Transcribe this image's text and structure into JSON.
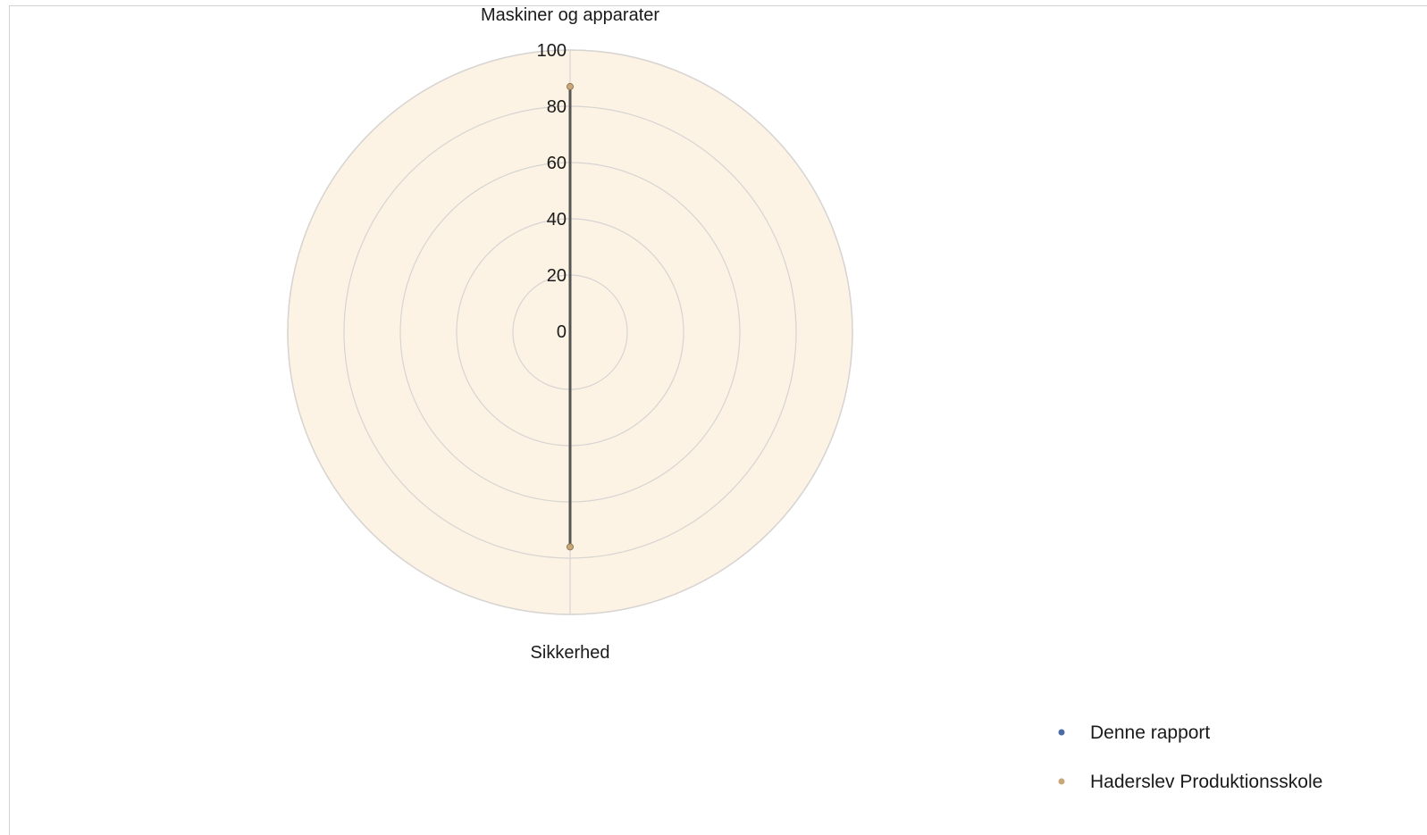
{
  "chart_data": {
    "type": "radar",
    "categories": [
      "Maskiner og apparater",
      "Sikkerhed"
    ],
    "series": [
      {
        "name": "Denne rapport",
        "values": [
          87,
          76
        ],
        "color": "#4a6aa8"
      },
      {
        "name": "Haderslev Produktionsskole",
        "values": [
          87,
          76
        ],
        "color": "#c9a877"
      }
    ],
    "rlim": [
      0,
      100
    ],
    "ticks": [
      "0",
      "20",
      "40",
      "60",
      "80",
      "100"
    ],
    "tick_values": [
      0,
      20,
      40,
      60,
      80,
      100
    ],
    "grid": true,
    "legend_position": "bottom-right",
    "plot_background": "#fcf3e4",
    "grid_color": "#d7d4d2",
    "line_color": "#555555"
  }
}
